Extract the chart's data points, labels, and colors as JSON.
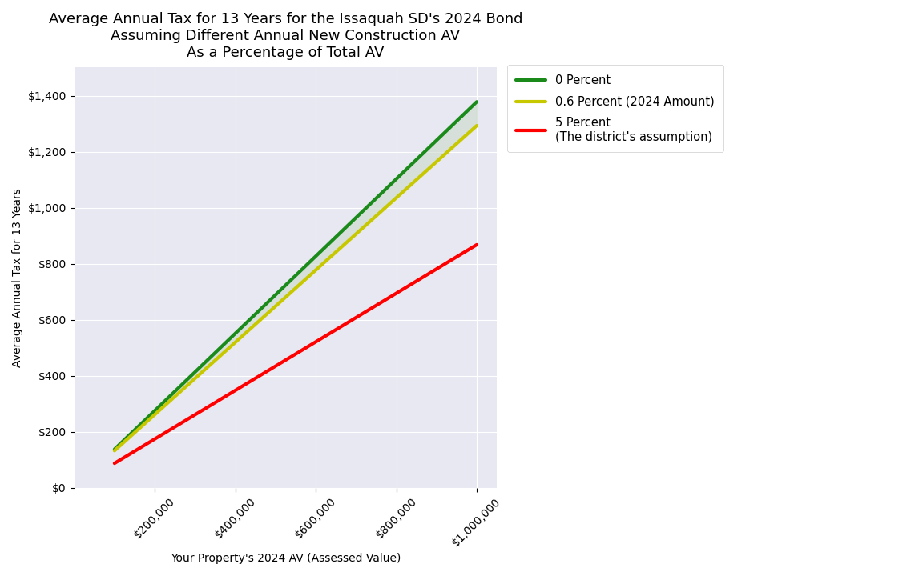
{
  "title": "Average Annual Tax for 13 Years for the Issaquah SD's 2024 Bond\nAssuming Different Annual New Construction AV\nAs a Percentage of Total AV",
  "xlabel": "Your Property's 2024 AV (Assessed Value)",
  "ylabel": "Average Annual Tax for 13 Years",
  "xlim": [
    0,
    1050000
  ],
  "ylim": [
    0,
    1500
  ],
  "x_ticks": [
    200000,
    400000,
    600000,
    800000,
    1000000
  ],
  "y_ticks": [
    0,
    200,
    400,
    600,
    800,
    1000,
    1200,
    1400
  ],
  "lines": {
    "zero_percent": {
      "x": [
        100000,
        1000000
      ],
      "y": [
        138.0,
        1378.0
      ],
      "color": "#1a8a1a",
      "linewidth": 3.0,
      "label": "0 Percent"
    },
    "point6_percent": {
      "x": [
        100000,
        1000000
      ],
      "y": [
        133.0,
        1293.0
      ],
      "color": "#c8c800",
      "linewidth": 3.0,
      "label": "0.6 Percent (2024 Amount)"
    },
    "five_percent": {
      "x": [
        100000,
        1000000
      ],
      "y": [
        88.0,
        868.0
      ],
      "color": "red",
      "linewidth": 3.0,
      "label": "5 Percent\n(The district's assumption)"
    }
  },
  "fill_between_color": "#c8d8c8",
  "fill_between_alpha": 0.55,
  "plot_bg_color": "#e8e8f2",
  "figure_bg_color": "#ffffff",
  "title_fontsize": 13,
  "axis_label_fontsize": 10,
  "tick_fontsize": 10,
  "legend_fontsize": 10.5
}
